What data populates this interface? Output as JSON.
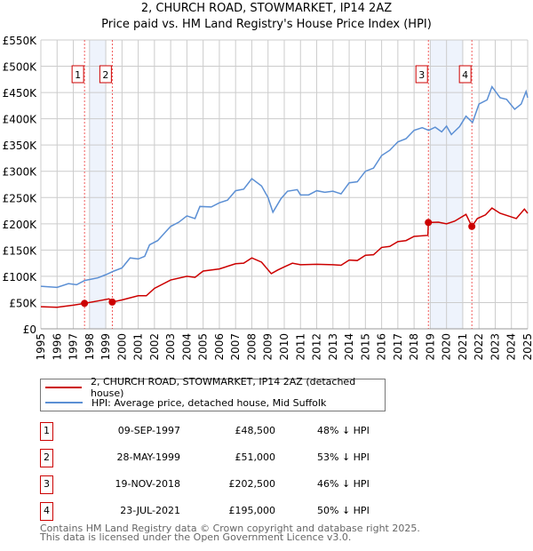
{
  "title": "2, CHURCH ROAD, STOWMARKET, IP14 2AZ",
  "subtitle": "Price paid vs. HM Land Registry's House Price Index (HPI)",
  "colors": {
    "property": "#cc0000",
    "hpi": "#5b8fd4",
    "shade": "#eef3fc",
    "grid": "#cccccc"
  },
  "chart_data": {
    "type": "line",
    "xlim": [
      1995,
      2025
    ],
    "ylim": [
      0,
      550000
    ],
    "yticks": [
      {
        "v": 0,
        "l": "£0"
      },
      {
        "v": 50000,
        "l": "£50K"
      },
      {
        "v": 100000,
        "l": "£100K"
      },
      {
        "v": 150000,
        "l": "£150K"
      },
      {
        "v": 200000,
        "l": "£200K"
      },
      {
        "v": 250000,
        "l": "£250K"
      },
      {
        "v": 300000,
        "l": "£300K"
      },
      {
        "v": 350000,
        "l": "£350K"
      },
      {
        "v": 400000,
        "l": "£400K"
      },
      {
        "v": 450000,
        "l": "£450K"
      },
      {
        "v": 500000,
        "l": "£500K"
      },
      {
        "v": 550000,
        "l": "£550K"
      }
    ],
    "xticks": [
      1995,
      1996,
      1997,
      1998,
      1999,
      2000,
      2001,
      2002,
      2003,
      2004,
      2005,
      2006,
      2007,
      2008,
      2009,
      2010,
      2011,
      2012,
      2013,
      2014,
      2015,
      2016,
      2017,
      2018,
      2019,
      2020,
      2021,
      2022,
      2023,
      2024,
      2025
    ],
    "series": [
      {
        "name": "2, CHURCH ROAD, STOWMARKET, IP14 2AZ (detached house)",
        "color": "#cc0000",
        "points": [
          [
            1995,
            42
          ],
          [
            1996,
            41
          ],
          [
            1997,
            45
          ],
          [
            1997.69,
            48.5
          ],
          [
            1998.5,
            53
          ],
          [
            1999.2,
            57
          ],
          [
            1999.4,
            51
          ],
          [
            2000,
            55
          ],
          [
            2001,
            63
          ],
          [
            2001.5,
            63
          ],
          [
            2002,
            77
          ],
          [
            2003,
            93
          ],
          [
            2004,
            100
          ],
          [
            2004.5,
            98
          ],
          [
            2005,
            110
          ],
          [
            2006,
            114
          ],
          [
            2007,
            124
          ],
          [
            2007.5,
            125
          ],
          [
            2008,
            135
          ],
          [
            2008.6,
            127
          ],
          [
            2009.2,
            105
          ],
          [
            2009.6,
            112
          ],
          [
            2010,
            118
          ],
          [
            2010.5,
            125
          ],
          [
            2011,
            122
          ],
          [
            2012,
            123
          ],
          [
            2013,
            122
          ],
          [
            2013.5,
            121
          ],
          [
            2014,
            131
          ],
          [
            2014.5,
            130
          ],
          [
            2015,
            140
          ],
          [
            2015.5,
            141
          ],
          [
            2016,
            155
          ],
          [
            2016.5,
            157
          ],
          [
            2017,
            166
          ],
          [
            2017.5,
            168
          ],
          [
            2018,
            176
          ],
          [
            2018.85,
            178
          ],
          [
            2018.88,
            202.5
          ],
          [
            2019.5,
            203
          ],
          [
            2020,
            200
          ],
          [
            2020.5,
            205
          ],
          [
            2021.2,
            218
          ],
          [
            2021.56,
            195
          ],
          [
            2021.9,
            210
          ],
          [
            2022.4,
            217
          ],
          [
            2022.8,
            230
          ],
          [
            2023.3,
            220
          ],
          [
            2023.8,
            215
          ],
          [
            2024.3,
            210
          ],
          [
            2024.8,
            228
          ],
          [
            2025,
            220
          ]
        ]
      },
      {
        "name": "HPI: Average price, detached house, Mid Suffolk",
        "color": "#5b8fd4",
        "points": [
          [
            1995,
            81
          ],
          [
            1996,
            79
          ],
          [
            1996.7,
            86
          ],
          [
            1997.2,
            84
          ],
          [
            1997.7,
            92
          ],
          [
            1998.5,
            97
          ],
          [
            1999,
            103
          ],
          [
            1999.5,
            110
          ],
          [
            2000,
            116
          ],
          [
            2000.5,
            135
          ],
          [
            2001,
            133
          ],
          [
            2001.4,
            138
          ],
          [
            2001.7,
            160
          ],
          [
            2002.2,
            168
          ],
          [
            2002.7,
            185
          ],
          [
            2003,
            195
          ],
          [
            2003.5,
            203
          ],
          [
            2004,
            215
          ],
          [
            2004.5,
            210
          ],
          [
            2004.8,
            233
          ],
          [
            2005.5,
            232
          ],
          [
            2006,
            240
          ],
          [
            2006.5,
            245
          ],
          [
            2007,
            263
          ],
          [
            2007.5,
            266
          ],
          [
            2008,
            286
          ],
          [
            2008.6,
            272
          ],
          [
            2009,
            250
          ],
          [
            2009.3,
            222
          ],
          [
            2009.8,
            248
          ],
          [
            2010.2,
            262
          ],
          [
            2010.8,
            265
          ],
          [
            2011,
            255
          ],
          [
            2011.5,
            255
          ],
          [
            2012,
            263
          ],
          [
            2012.5,
            260
          ],
          [
            2013,
            262
          ],
          [
            2013.5,
            257
          ],
          [
            2014,
            278
          ],
          [
            2014.5,
            280
          ],
          [
            2015,
            300
          ],
          [
            2015.5,
            306
          ],
          [
            2016,
            330
          ],
          [
            2016.5,
            340
          ],
          [
            2017,
            356
          ],
          [
            2017.5,
            362
          ],
          [
            2018,
            378
          ],
          [
            2018.5,
            383
          ],
          [
            2018.9,
            378
          ],
          [
            2019.3,
            384
          ],
          [
            2019.7,
            375
          ],
          [
            2020,
            386
          ],
          [
            2020.3,
            370
          ],
          [
            2020.8,
            385
          ],
          [
            2021.2,
            405
          ],
          [
            2021.6,
            393
          ],
          [
            2022,
            428
          ],
          [
            2022.5,
            436
          ],
          [
            2022.8,
            461
          ],
          [
            2023.3,
            440
          ],
          [
            2023.7,
            437
          ],
          [
            2024.2,
            418
          ],
          [
            2024.6,
            428
          ],
          [
            2024.9,
            452
          ],
          [
            2025,
            440
          ]
        ]
      }
    ],
    "sales": [
      {
        "n": "1",
        "x": 1997.69,
        "y": 48.5
      },
      {
        "n": "2",
        "x": 1999.4,
        "y": 51
      },
      {
        "n": "3",
        "x": 2018.88,
        "y": 202.5
      },
      {
        "n": "4",
        "x": 2021.56,
        "y": 195
      }
    ],
    "shaded": [
      [
        1998,
        1999
      ],
      [
        2019,
        2021
      ]
    ]
  },
  "legend": [
    "2, CHURCH ROAD, STOWMARKET, IP14 2AZ (detached house)",
    "HPI: Average price, detached house, Mid Suffolk"
  ],
  "transactions": [
    {
      "n": "1",
      "date": "09-SEP-1997",
      "price": "£48,500",
      "hpi": "48% ↓ HPI"
    },
    {
      "n": "2",
      "date": "28-MAY-1999",
      "price": "£51,000",
      "hpi": "53% ↓ HPI"
    },
    {
      "n": "3",
      "date": "19-NOV-2018",
      "price": "£202,500",
      "hpi": "46% ↓ HPI"
    },
    {
      "n": "4",
      "date": "23-JUL-2021",
      "price": "£195,000",
      "hpi": "50% ↓ HPI"
    }
  ],
  "footer": [
    "Contains HM Land Registry data © Crown copyright and database right 2025.",
    "This data is licensed under the Open Government Licence v3.0."
  ]
}
